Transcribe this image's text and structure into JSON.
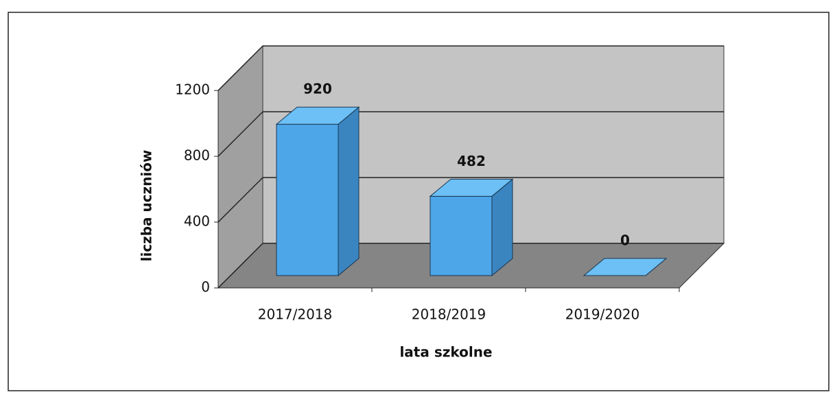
{
  "chart_data": {
    "type": "bar3d",
    "categories": [
      "2017/2018",
      "2018/2019",
      "2019/2020"
    ],
    "values": [
      920,
      482,
      0
    ],
    "color": "#4da6e8",
    "ylim": [
      0,
      1200
    ],
    "yticks": [
      0,
      400,
      800,
      1200
    ],
    "grid": true,
    "x_label": "lata szkolne",
    "y_label": "liczba uczniów"
  }
}
